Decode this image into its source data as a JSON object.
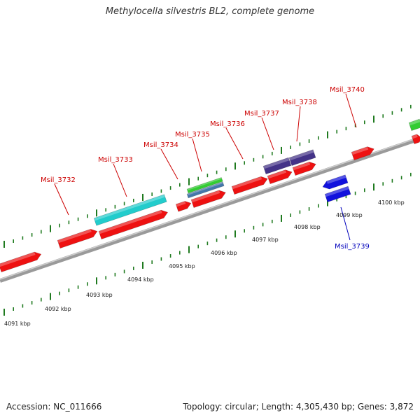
{
  "title": "Methylocella silvestris BL2, complete genome",
  "footer": {
    "accession": "Accession: NC_011666",
    "summary": "Topology: circular; Length: 4,305,430 bp; Genes: 3,872"
  },
  "colors": {
    "backbone": "#8c8c8c",
    "tick": "#1f7a1f",
    "forward_gene": "#ee1111",
    "reverse_gene": "#1111dd",
    "cyan_feature": "#22cccc",
    "green_feature": "#33cc33",
    "steelblue_feature": "#4477aa",
    "purple_feature": "#443388",
    "label_red": "#cc0000",
    "label_blue": "#0000bb"
  },
  "scale_labels": [
    "4091 kbp",
    "4092 kbp",
    "4093 kbp",
    "4094 kbp",
    "4095 kbp",
    "4096 kbp",
    "4097 kbp",
    "4098 kbp",
    "4099 kbp",
    "4100 kbp"
  ],
  "gene_labels": [
    {
      "text": "Msil_3732",
      "color": "red"
    },
    {
      "text": "Msil_3733",
      "color": "red"
    },
    {
      "text": "Msil_3734",
      "color": "red"
    },
    {
      "text": "Msil_3735",
      "color": "red"
    },
    {
      "text": "Msil_3736",
      "color": "red"
    },
    {
      "text": "Msil_3737",
      "color": "red"
    },
    {
      "text": "Msil_3738",
      "color": "red"
    },
    {
      "text": "Msil_3740",
      "color": "red"
    },
    {
      "text": "Msil_3739",
      "color": "blue"
    }
  ]
}
